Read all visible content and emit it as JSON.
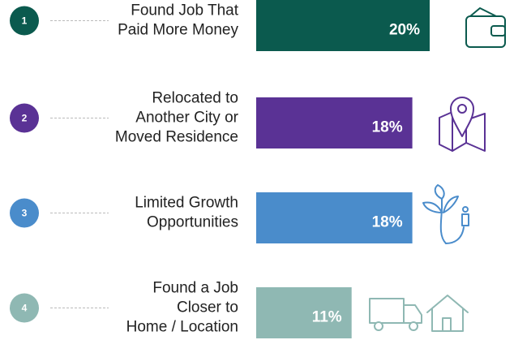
{
  "chart_data": {
    "type": "bar",
    "categories": [
      [
        "Found Job That",
        "Paid  More Money"
      ],
      [
        "Relocated to",
        "Another City or",
        "Moved Residence"
      ],
      [
        "Limited Growth",
        "Opportunities"
      ],
      [
        "Found a Job",
        "Closer to",
        "Home / Location"
      ]
    ],
    "ranks": [
      "1",
      "2",
      "3",
      "4"
    ],
    "values": [
      20,
      18,
      18,
      11
    ],
    "value_labels": [
      "20%",
      "18%",
      "18%",
      "11%"
    ],
    "colors": [
      "#0b5a4e",
      "#5a3295",
      "#4a8ccb",
      "#8fb8b3"
    ]
  }
}
